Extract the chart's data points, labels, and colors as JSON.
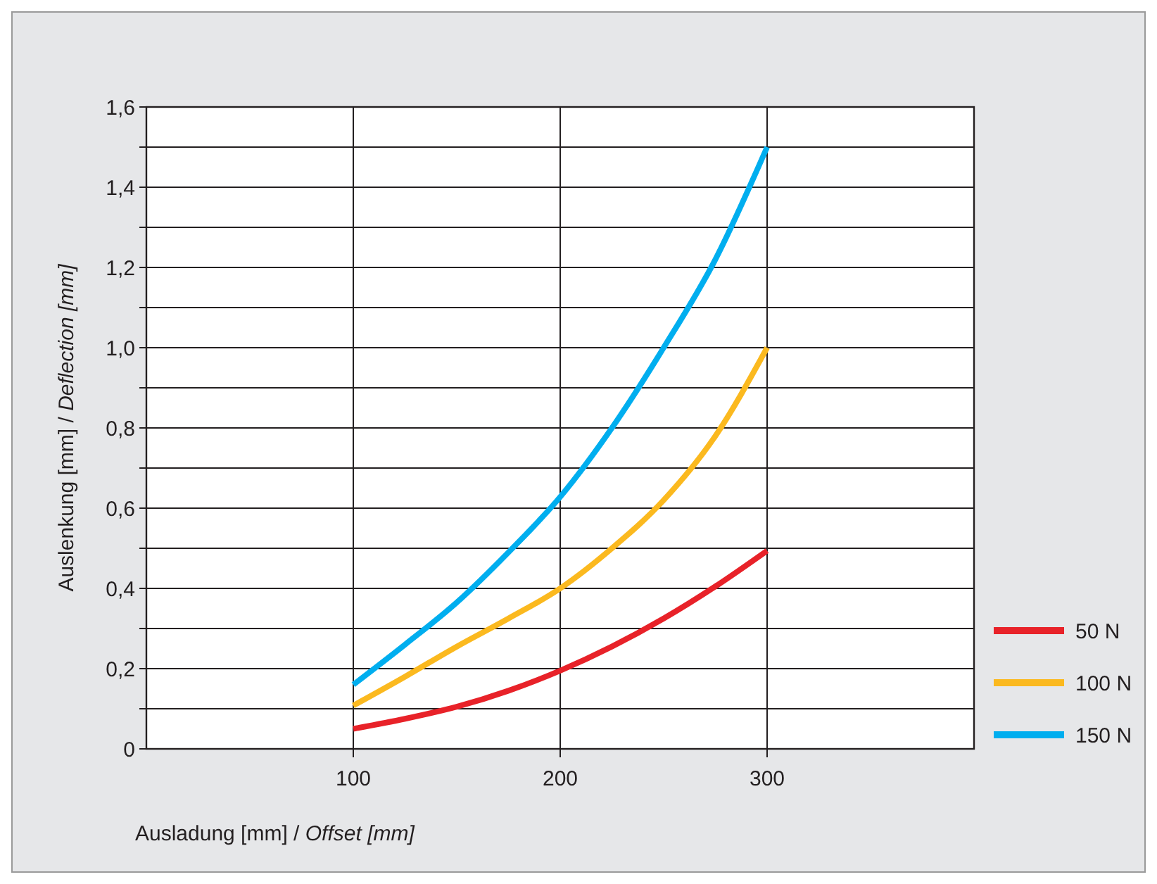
{
  "chart_data": {
    "type": "line",
    "xlabel": "Ausladung [mm] / Offset [mm]",
    "ylabel": "Auslenkung [mm] / Deflection [mm]",
    "x": [
      100,
      125,
      150,
      175,
      200,
      225,
      250,
      275,
      300
    ],
    "series": [
      {
        "name": "50 N",
        "color": "#e82229",
        "values": [
          0.05,
          0.075,
          0.105,
          0.145,
          0.195,
          0.255,
          0.325,
          0.405,
          0.494
        ]
      },
      {
        "name": "100 N",
        "color": "#fbb91f",
        "values": [
          0.108,
          0.18,
          0.255,
          0.325,
          0.4,
          0.5,
          0.62,
          0.78,
          1.0
        ]
      },
      {
        "name": "150 N",
        "color": "#00aeef",
        "values": [
          0.16,
          0.26,
          0.365,
          0.49,
          0.628,
          0.8,
          1.0,
          1.22,
          1.5
        ]
      }
    ],
    "xlim": [
      0,
      400
    ],
    "xticks": [
      100,
      200,
      300
    ],
    "ylim": [
      0,
      1.6
    ],
    "yticks": [
      0,
      {
        "value": 0.1,
        "label": null
      },
      {
        "value": 0.2,
        "label": "0,2"
      },
      {
        "value": 0.3,
        "label": null
      },
      {
        "value": 0.4,
        "label": "0,4"
      },
      {
        "value": 0.5,
        "label": null
      },
      {
        "value": 0.6,
        "label": "0,6"
      },
      {
        "value": 0.7,
        "label": null
      },
      {
        "value": 0.8,
        "label": "0,8"
      },
      {
        "value": 0.9,
        "label": null
      },
      {
        "value": 1.0,
        "label": "1,0"
      },
      {
        "value": 1.1,
        "label": null
      },
      {
        "value": 1.2,
        "label": "1,2"
      },
      {
        "value": 1.3,
        "label": null
      },
      {
        "value": 1.4,
        "label": "1,4"
      },
      {
        "value": 1.5,
        "label": null
      },
      {
        "value": 1.6,
        "label": "1,6"
      }
    ],
    "grid": true,
    "legend": "right",
    "marker": "none",
    "line_style": "solid"
  }
}
